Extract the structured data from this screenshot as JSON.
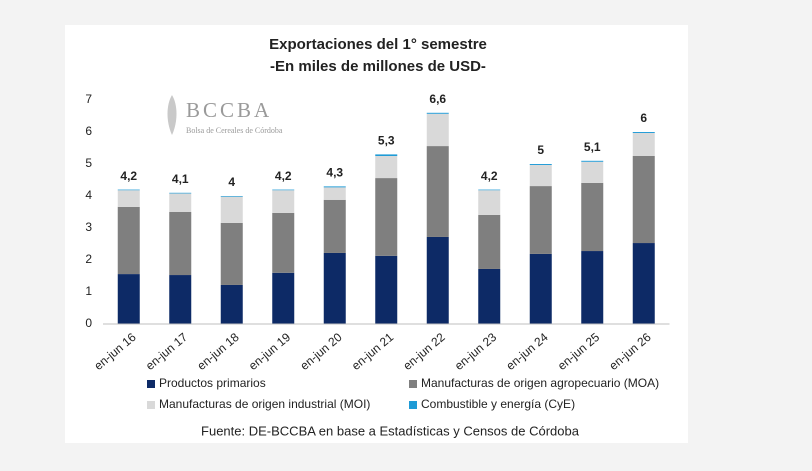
{
  "chart_data": {
    "type": "stacked_bar",
    "title": "Exportaciones del 1° semestre",
    "subtitle": "-En miles de millones de USD-",
    "logo": {
      "name": "BCCBA",
      "subtitle": "Bolsa de Cereales de Córdoba"
    },
    "source": "Fuente: DE-BCCBA en base a Estadísticas y Censos de Córdoba",
    "categories": [
      "en-jun 16",
      "en-jun 17",
      "en-jun 18",
      "en-jun 19",
      "en-jun 20",
      "en-jun 21",
      "en-jun 22",
      "en-jun 23",
      "en-jun 24",
      "en-jun 25",
      "en-jun 26"
    ],
    "series": [
      {
        "name": "Productos primarios",
        "color": "#0d2a66",
        "values": [
          1.56,
          1.53,
          1.22,
          1.6,
          2.22,
          2.13,
          2.72,
          1.72,
          2.19,
          2.28,
          2.53
        ]
      },
      {
        "name": "Manufacturas de origen agropecuario (MOA)",
        "color": "#7f7f7f",
        "values": [
          2.1,
          1.97,
          1.94,
          1.87,
          1.66,
          2.43,
          2.84,
          1.69,
          2.12,
          2.13,
          2.72
        ]
      },
      {
        "name": "Manufacturas de origen industrial (MOI)",
        "color": "#d9d9d9",
        "values": [
          0.52,
          0.58,
          0.82,
          0.71,
          0.39,
          0.69,
          1.01,
          0.77,
          0.66,
          0.66,
          0.72
        ]
      },
      {
        "name": "Combustible y energía (CyE)",
        "color": "#1f9bd6",
        "values": [
          0.02,
          0.02,
          0.02,
          0.02,
          0.03,
          0.05,
          0.03,
          0.02,
          0.03,
          0.03,
          0.03
        ]
      }
    ],
    "totals": [
      4.2,
      4.1,
      4,
      4.2,
      4.3,
      5.3,
      6.6,
      4.2,
      5,
      5.1,
      6
    ],
    "total_labels": [
      "4,2",
      "4,1",
      "4",
      "4,2",
      "4,3",
      "5,3",
      "6,6",
      "4,2",
      "5",
      "5,1",
      "6"
    ],
    "ylim": [
      0,
      7
    ],
    "yticks": [
      0,
      1,
      2,
      3,
      4,
      5,
      6,
      7
    ],
    "grid": false,
    "legend": "bottom"
  }
}
